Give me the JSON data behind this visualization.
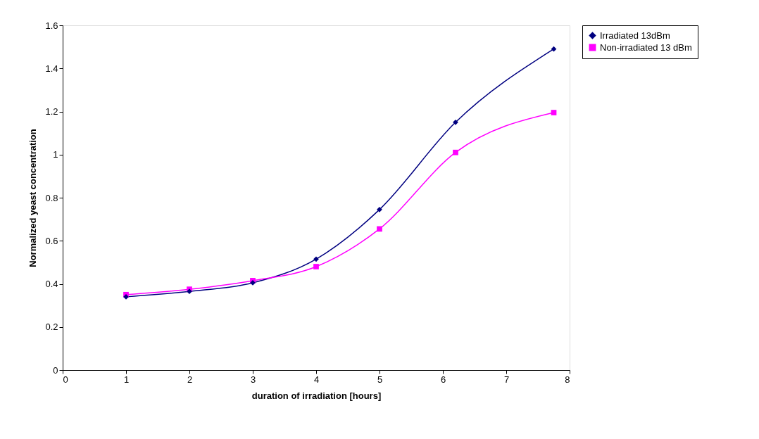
{
  "chart_data": {
    "type": "line",
    "xlabel": "duration of irradiation [hours]",
    "ylabel": "Normalized yeast concentration",
    "x": [
      1,
      2,
      3,
      4,
      5,
      6.2,
      7.75
    ],
    "series": [
      {
        "name": "Irradiated 13dBm",
        "color": "#000080",
        "marker": "diamond",
        "values": [
          0.34,
          0.365,
          0.405,
          0.515,
          0.745,
          1.15,
          1.49
        ]
      },
      {
        "name": "Non-irradiated 13 dBm",
        "color": "#ff00ff",
        "marker": "square",
        "values": [
          0.35,
          0.375,
          0.415,
          0.48,
          0.655,
          1.01,
          1.195
        ]
      }
    ],
    "xlim": [
      0,
      8
    ],
    "xticks": [
      0,
      1,
      2,
      3,
      4,
      5,
      6,
      7,
      8
    ],
    "ylim": [
      0,
      1.6
    ],
    "yticks": [
      0,
      0.2,
      0.4,
      0.6,
      0.8,
      1,
      1.2,
      1.4,
      1.6
    ],
    "grid": false,
    "legend": "right",
    "line_style": "solid"
  }
}
